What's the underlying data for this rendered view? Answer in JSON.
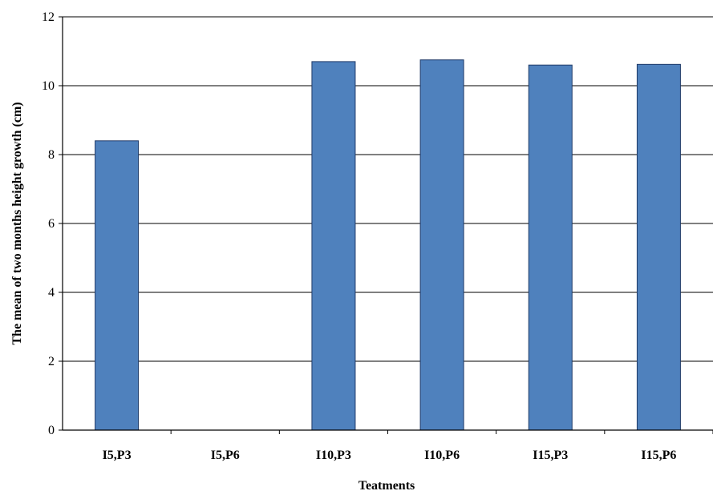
{
  "chart_data": {
    "type": "bar",
    "categories": [
      "I5,P3",
      "I5,P6",
      "I10,P3",
      "I10,P6",
      "I15,P3",
      "I15,P6"
    ],
    "values": [
      8.4,
      0,
      10.7,
      10.75,
      10.6,
      10.62
    ],
    "xlabel": "Teatments",
    "ylabel": "The mean of two months height  growth (cm)",
    "ylim": [
      0,
      12
    ],
    "yticks": [
      0,
      2,
      4,
      6,
      8,
      10,
      12
    ],
    "grid": true,
    "bar_color": "#4f81bd",
    "bar_edge_color": "#1f3a68"
  }
}
